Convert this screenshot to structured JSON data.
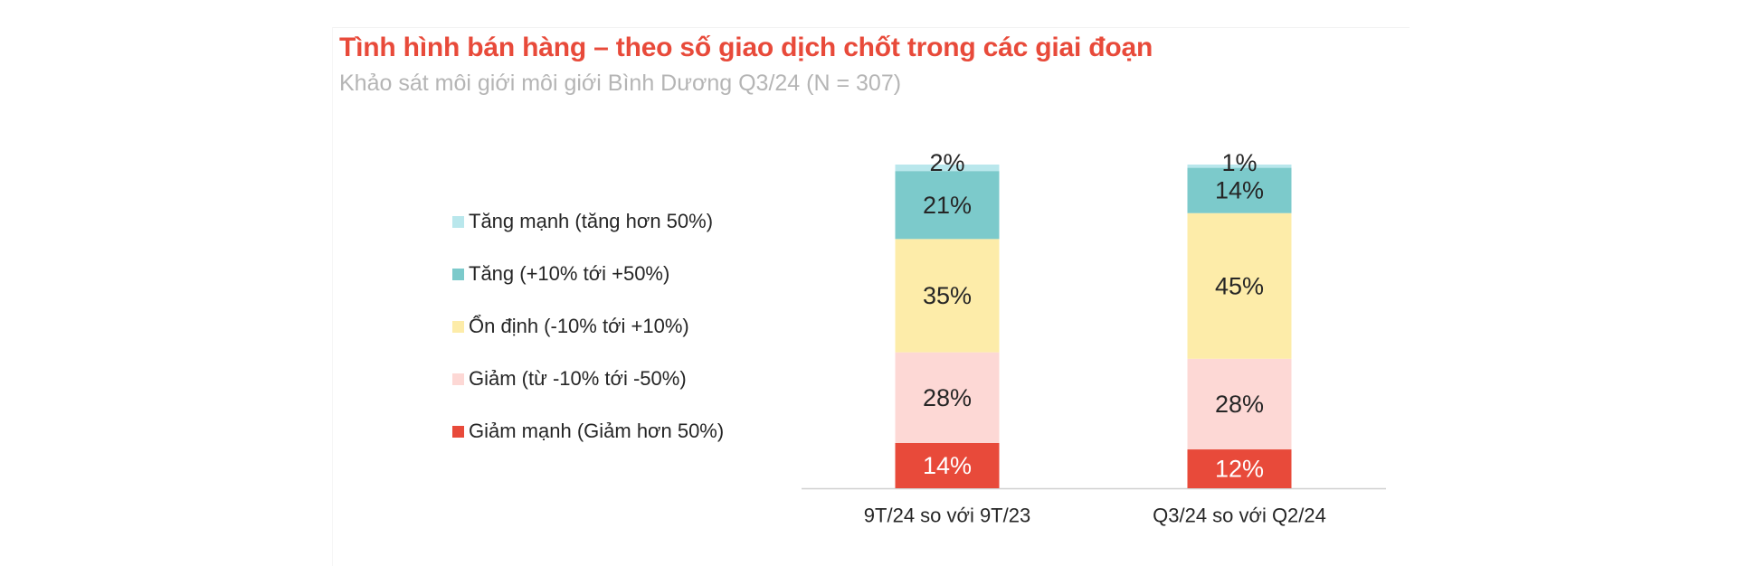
{
  "title": "Tình hình bán hàng – theo số giao dịch chốt trong các giai đoạn",
  "subtitle": "Khảo sát môi giới môi giới Bình Dương Q3/24 (N = 307)",
  "legend": [
    {
      "label": "Tăng mạnh (tăng hơn 50%)",
      "color": "#b9e7ec"
    },
    {
      "label": "Tăng (+10% tới +50%)",
      "color": "#7ccacb"
    },
    {
      "label": "Ổn định  (-10% tới +10%)",
      "color": "#fdeca9"
    },
    {
      "label": "Giảm (từ -10% tới -50%)",
      "color": "#fdd8d5"
    },
    {
      "label": "Giảm mạnh (Giảm hơn 50%)",
      "color": "#e84a3a"
    }
  ],
  "chart_data": {
    "type": "bar",
    "stacked": true,
    "categories": [
      "9T/24 so với 9T/23",
      "Q3/24 so với Q2/24"
    ],
    "series": [
      {
        "name": "Giảm mạnh (Giảm hơn 50%)",
        "values": [
          14,
          12
        ],
        "labels": [
          "14%",
          "12%"
        ],
        "color": "#e84a3a",
        "label_color": "#ffffff"
      },
      {
        "name": "Giảm (từ -10% tới -50%)",
        "values": [
          28,
          28
        ],
        "labels": [
          "28%",
          "28%"
        ],
        "color": "#fdd8d5",
        "label_color": "#262626"
      },
      {
        "name": "Ổn định  (-10% tới +10%)",
        "values": [
          35,
          45
        ],
        "labels": [
          "35%",
          "45%"
        ],
        "color": "#fdeca9",
        "label_color": "#262626"
      },
      {
        "name": "Tăng (+10% tới +50%)",
        "values": [
          21,
          14
        ],
        "labels": [
          "21%",
          "14%"
        ],
        "color": "#7ccacb",
        "label_color": "#262626"
      },
      {
        "name": "Tăng mạnh (tăng hơn 50%)",
        "values": [
          2,
          1
        ],
        "labels": [
          "2%",
          "1%"
        ],
        "color": "#b9e7ec",
        "label_color": "#262626"
      }
    ],
    "ylim": [
      0,
      100
    ],
    "grid": false,
    "legend_position": "left",
    "xlabel": "",
    "ylabel": ""
  }
}
